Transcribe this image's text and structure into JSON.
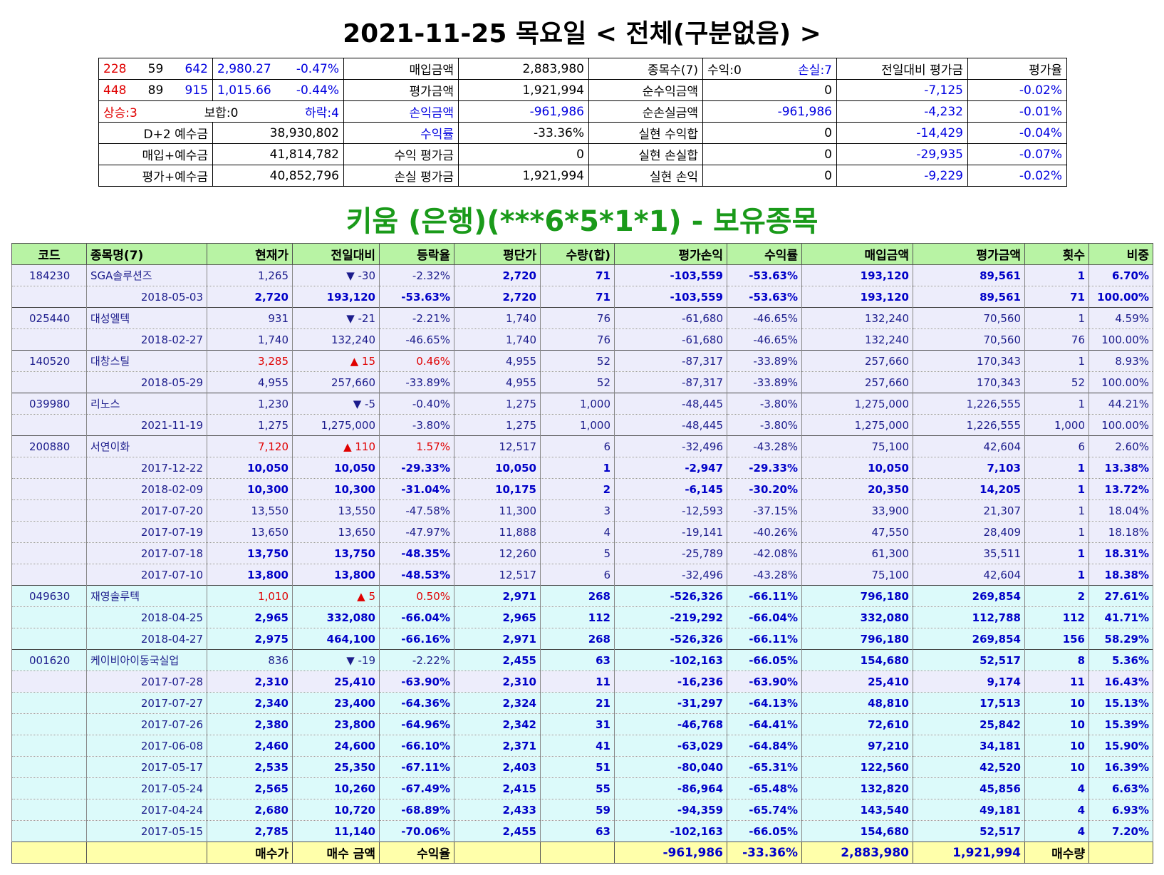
{
  "title": "2021-11-25 목요일 < 전체(구분없음) >",
  "summary": {
    "rows": [
      [
        [
          "228",
          "59",
          "642"
        ],
        [
          "2,980.27",
          "-0.47%"
        ],
        "매입금액",
        "2,883,980",
        "종목수(7)",
        [
          "수익:0",
          "손실:7"
        ],
        "전일대비 평가금",
        "평가율"
      ],
      [
        [
          "448",
          "89",
          "915"
        ],
        [
          "1,015.66",
          "-0.44%"
        ],
        "평가금액",
        "1,921,994",
        "순수익금액",
        "0",
        "-7,125",
        "-0.02%"
      ],
      [
        [
          "상승:3",
          "보합:0",
          "하락:4"
        ],
        "손익금액",
        "-961,986",
        "순손실금액",
        "-961,986",
        "-4,232",
        "-0.01%"
      ],
      [
        "D+2 예수금",
        "38,930,802",
        "수익률",
        "-33.36%",
        "실현 수익합",
        "0",
        "-14,429",
        "-0.04%"
      ],
      [
        "매입+예수금",
        "41,814,782",
        "수익 평가금",
        "0",
        "실현 손실합",
        "0",
        "-29,935",
        "-0.07%"
      ],
      [
        "평가+예수금",
        "40,852,796",
        "손실 평가금",
        "1,921,994",
        "실현 손익",
        "0",
        "-9,229",
        "-0.02%"
      ]
    ]
  },
  "subtitle": "키움 (은행)(***6*5*1*1) - 보유종목",
  "table": {
    "header": [
      "코드",
      "종목명(7)",
      "현재가",
      "전일대비",
      "등락율",
      "평단가",
      "수량(합)",
      "평가손익",
      "수익률",
      "매입금액",
      "평가금액",
      "횟수",
      "비중"
    ],
    "rows": [
      [
        "184230",
        "SGA솔루션즈",
        "1,265",
        "▼ -30",
        "-2.32%",
        "2,720",
        "71",
        "-103,559",
        "-53.63%",
        "193,120",
        "89,561",
        "1",
        "6.70%"
      ],
      [
        null,
        "2018-05-03",
        "2,720",
        "193,120",
        "-53.63%",
        "2,720",
        "71",
        "-103,559",
        "-53.63%",
        "193,120",
        "89,561",
        "71",
        "100.00%"
      ],
      [
        "025440",
        "대성엘텍",
        "931",
        "▼ -21",
        "-2.21%",
        "1,740",
        "76",
        "-61,680",
        "-46.65%",
        "132,240",
        "70,560",
        "1",
        "4.59%"
      ],
      [
        null,
        "2018-02-27",
        "1,740",
        "132,240",
        "-46.65%",
        "1,740",
        "76",
        "-61,680",
        "-46.65%",
        "132,240",
        "70,560",
        "76",
        "100.00%"
      ],
      [
        "140520",
        "대창스틸",
        "3,285",
        "▲ 15",
        "0.46%",
        "4,955",
        "52",
        "-87,317",
        "-33.89%",
        "257,660",
        "170,343",
        "1",
        "8.93%"
      ],
      [
        null,
        "2018-05-29",
        "4,955",
        "257,660",
        "-33.89%",
        "4,955",
        "52",
        "-87,317",
        "-33.89%",
        "257,660",
        "170,343",
        "52",
        "100.00%"
      ],
      [
        "039980",
        "리노스",
        "1,230",
        "▼ -5",
        "-0.40%",
        "1,275",
        "1,000",
        "-48,445",
        "-3.80%",
        "1,275,000",
        "1,226,555",
        "1",
        "44.21%"
      ],
      [
        null,
        "2021-11-19",
        "1,275",
        "1,275,000",
        "-3.80%",
        "1,275",
        "1,000",
        "-48,445",
        "-3.80%",
        "1,275,000",
        "1,226,555",
        "1,000",
        "100.00%"
      ],
      [
        "200880",
        "서연이화",
        "7,120",
        "▲ 110",
        "1.57%",
        "12,517",
        "6",
        "-32,496",
        "-43.28%",
        "75,100",
        "42,604",
        "6",
        "2.60%"
      ],
      [
        null,
        "2017-12-22",
        "10,050",
        "10,050",
        "-29.33%",
        "10,050",
        "1",
        "-2,947",
        "-29.33%",
        "10,050",
        "7,103",
        "1",
        "13.38%"
      ],
      [
        null,
        "2018-02-09",
        "10,300",
        "10,300",
        "-31.04%",
        "10,175",
        "2",
        "-6,145",
        "-30.20%",
        "20,350",
        "14,205",
        "1",
        "13.72%"
      ],
      [
        null,
        "2017-07-20",
        "13,550",
        "13,550",
        "-47.58%",
        "11,300",
        "3",
        "-12,593",
        "-37.15%",
        "33,900",
        "21,307",
        "1",
        "18.04%"
      ],
      [
        null,
        "2017-07-19",
        "13,650",
        "13,650",
        "-47.97%",
        "11,888",
        "4",
        "-19,141",
        "-40.26%",
        "47,550",
        "28,409",
        "1",
        "18.18%"
      ],
      [
        null,
        "2017-07-18",
        "13,750",
        "13,750",
        "-48.35%",
        "12,260",
        "5",
        "-25,789",
        "-42.08%",
        "61,300",
        "35,511",
        "1",
        "18.31%"
      ],
      [
        null,
        "2017-07-10",
        "13,800",
        "13,800",
        "-48.53%",
        "12,517",
        "6",
        "-32,496",
        "-43.28%",
        "75,100",
        "42,604",
        "1",
        "18.38%"
      ],
      [
        "049630",
        "재영솔루텍",
        "1,010",
        "▲ 5",
        "0.50%",
        "2,971",
        "268",
        "-526,326",
        "-66.11%",
        "796,180",
        "269,854",
        "2",
        "27.61%"
      ],
      [
        null,
        "2018-04-25",
        "2,965",
        "332,080",
        "-66.04%",
        "2,965",
        "112",
        "-219,292",
        "-66.04%",
        "332,080",
        "112,788",
        "112",
        "41.71%"
      ],
      [
        null,
        "2018-04-27",
        "2,975",
        "464,100",
        "-66.16%",
        "2,971",
        "268",
        "-526,326",
        "-66.11%",
        "796,180",
        "269,854",
        "156",
        "58.29%"
      ],
      [
        "001620",
        "케이비아이동국실업",
        "836",
        "▼ -19",
        "-2.22%",
        "2,455",
        "63",
        "-102,163",
        "-66.05%",
        "154,680",
        "52,517",
        "8",
        "5.36%"
      ],
      [
        null,
        "2017-07-28",
        "2,310",
        "25,410",
        "-63.90%",
        "2,310",
        "11",
        "-16,236",
        "-63.90%",
        "25,410",
        "9,174",
        "11",
        "16.43%"
      ],
      [
        null,
        "2017-07-27",
        "2,340",
        "23,400",
        "-64.36%",
        "2,324",
        "21",
        "-31,297",
        "-64.13%",
        "48,810",
        "17,513",
        "10",
        "15.13%"
      ],
      [
        null,
        "2017-07-26",
        "2,380",
        "23,800",
        "-64.96%",
        "2,342",
        "31",
        "-46,768",
        "-64.41%",
        "72,610",
        "25,842",
        "10",
        "15.39%"
      ],
      [
        null,
        "2017-06-08",
        "2,460",
        "24,600",
        "-66.10%",
        "2,371",
        "41",
        "-63,029",
        "-64.84%",
        "97,210",
        "34,181",
        "10",
        "15.90%"
      ],
      [
        null,
        "2017-05-17",
        "2,535",
        "25,350",
        "-67.11%",
        "2,403",
        "51",
        "-80,040",
        "-65.31%",
        "122,560",
        "42,520",
        "10",
        "16.39%"
      ],
      [
        null,
        "2017-05-24",
        "2,565",
        "10,260",
        "-67.49%",
        "2,415",
        "55",
        "-86,964",
        "-65.48%",
        "132,820",
        "45,856",
        "4",
        "6.63%"
      ],
      [
        null,
        "2017-04-24",
        "2,680",
        "10,720",
        "-68.89%",
        "2,433",
        "59",
        "-94,359",
        "-65.74%",
        "143,540",
        "49,181",
        "4",
        "6.93%"
      ],
      [
        null,
        "2017-05-15",
        "2,785",
        "11,140",
        "-70.06%",
        "2,455",
        "63",
        "-102,163",
        "-66.05%",
        "154,680",
        "52,517",
        "4",
        "7.20%"
      ]
    ],
    "footer": [
      null,
      null,
      "매수가",
      "매수 금액",
      "수익율",
      null,
      null,
      "-961,986",
      "-33.36%",
      "2,883,980",
      "1,921,994",
      "매수량",
      null
    ]
  }
}
